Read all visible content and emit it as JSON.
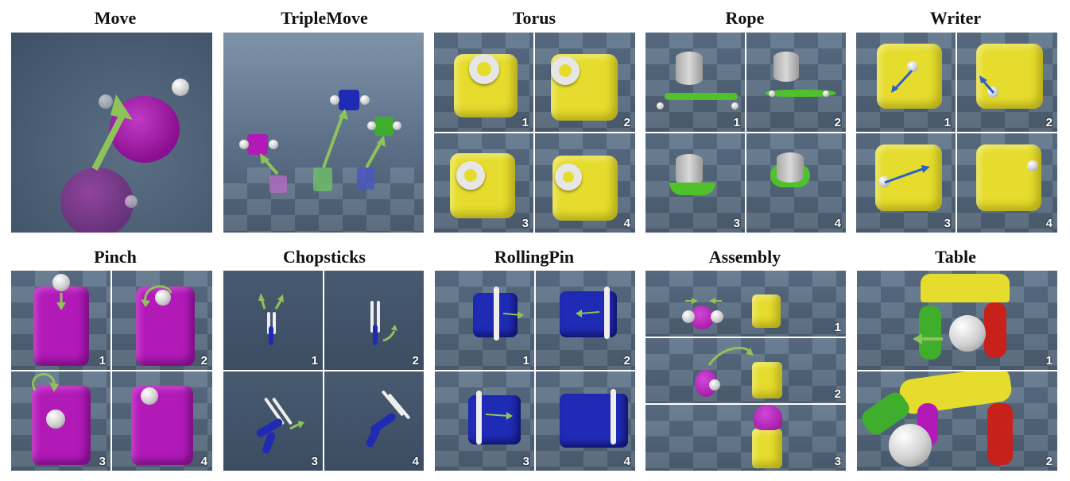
{
  "panels": [
    {
      "title": "Move",
      "steps": []
    },
    {
      "title": "TripleMove",
      "steps": []
    },
    {
      "title": "Torus",
      "steps": [
        "1",
        "2",
        "3",
        "4"
      ]
    },
    {
      "title": "Rope",
      "steps": [
        "1",
        "2",
        "3",
        "4"
      ]
    },
    {
      "title": "Writer",
      "steps": [
        "1",
        "2",
        "3",
        "4"
      ]
    },
    {
      "title": "Pinch",
      "steps": [
        "1",
        "2",
        "3",
        "4"
      ]
    },
    {
      "title": "Chopsticks",
      "steps": [
        "1",
        "2",
        "3",
        "4"
      ]
    },
    {
      "title": "RollingPin",
      "steps": [
        "1",
        "2",
        "3",
        "4"
      ]
    },
    {
      "title": "Assembly",
      "steps": [
        "1",
        "2",
        "3"
      ]
    },
    {
      "title": "Table",
      "steps": [
        "1",
        "2"
      ]
    }
  ],
  "colors": {
    "background_scene": "#4d6177",
    "arrow_green": "#8dc35a",
    "arrow_blue": "#2a5fd0",
    "dough_yellow": "#e5dc2d",
    "dough_purple": "#b21ab8",
    "dough_blue": "#1f2ab5",
    "rope_green": "#4fc22b"
  }
}
